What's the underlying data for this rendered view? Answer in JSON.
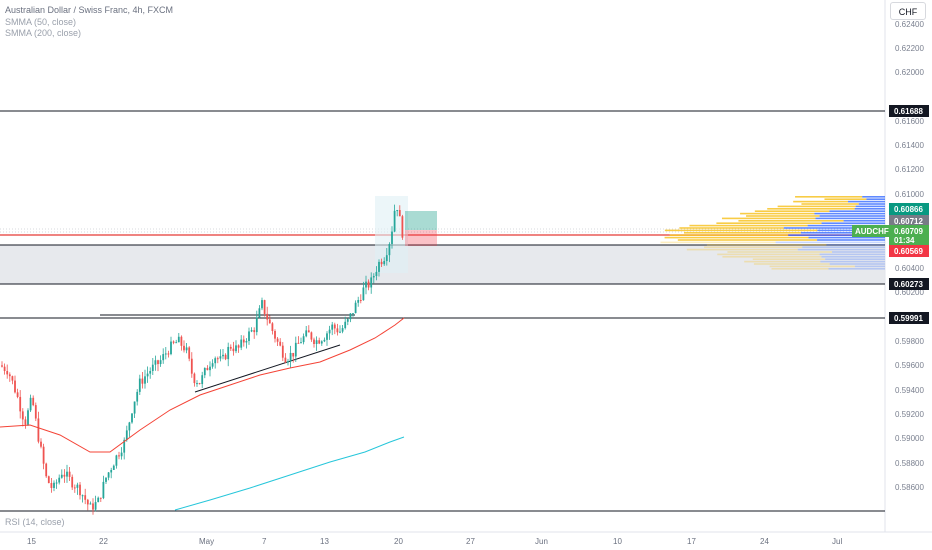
{
  "header": {
    "symbol_title": "Australian Dollar / Swiss Franc, 4h, FXCM",
    "indicator_1": "SMMA (50, close)",
    "indicator_2": "SMMA (200, close)",
    "currency": "CHF"
  },
  "rsi_pane": {
    "label": "RSI (14, close)"
  },
  "price_axis": {
    "ticks": [
      "0.62400",
      "0.62200",
      "0.62000",
      "0.61600",
      "0.61400",
      "0.61200",
      "0.61000",
      "0.60400",
      "0.60200",
      "0.59800",
      "0.59600",
      "0.59400",
      "0.59200",
      "0.59000",
      "0.58800",
      "0.58600"
    ]
  },
  "price_tags": {
    "level_high": "0.61688",
    "take_profit": "0.60866",
    "current_price": "0.60712",
    "symbol": "AUDCHF",
    "bid": "0.60709",
    "countdown": "01:34",
    "stop_loss": "0.60569",
    "level_mid": "0.60273",
    "level_low": "0.59991"
  },
  "time_axis": {
    "labels": [
      "15",
      "22",
      "May",
      "7",
      "13",
      "20",
      "27",
      "Jun",
      "10",
      "17",
      "24",
      "Jul"
    ]
  },
  "colors": {
    "bull": "#26a69a",
    "bear": "#ef5350",
    "smma50": "#f44336",
    "smma200": "#26c6da",
    "zone": "#e0e3eb",
    "tp": "#089981",
    "sl": "#f23645",
    "vp_up": "#2962ff",
    "vp_down": "#f7c325"
  }
}
